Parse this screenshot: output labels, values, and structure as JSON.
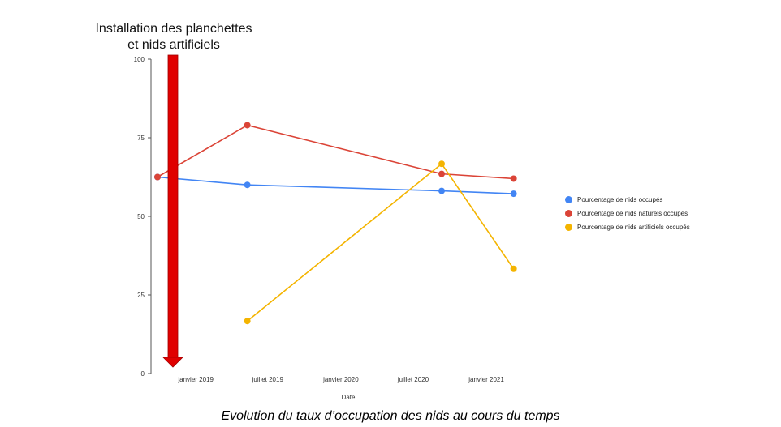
{
  "chart_data": {
    "type": "line",
    "title": "",
    "xlabel": "Date",
    "ylabel": "",
    "ylim": [
      0,
      100
    ],
    "yticks": [
      0,
      25,
      50,
      75,
      100
    ],
    "xlim": [
      "2018-12-01",
      "2021-09-01"
    ],
    "xticks": [
      {
        "date": "2019-01-01",
        "label": "janvier 2019"
      },
      {
        "date": "2019-07-01",
        "label": "juillet 2019"
      },
      {
        "date": "2020-01-01",
        "label": "janvier 2020"
      },
      {
        "date": "2020-07-01",
        "label": "juillet 2020"
      },
      {
        "date": "2021-01-01",
        "label": "janvier 2021"
      }
    ],
    "grid": false,
    "legend_position": "right",
    "series": [
      {
        "name": "Pourcentage de nids occupés",
        "color": "#4285F4",
        "points": [
          {
            "x": "2018-12-01",
            "y": 62.5
          },
          {
            "x": "2019-07-15",
            "y": 60
          },
          {
            "x": "2020-11-15",
            "y": 58.1
          },
          {
            "x": "2021-05-15",
            "y": 57.2
          }
        ]
      },
      {
        "name": "Pourcentage de nids naturels occupés",
        "color": "#DB4437",
        "points": [
          {
            "x": "2018-12-01",
            "y": 62.5
          },
          {
            "x": "2019-07-15",
            "y": 79
          },
          {
            "x": "2020-11-15",
            "y": 63.5
          },
          {
            "x": "2021-05-15",
            "y": 62
          }
        ]
      },
      {
        "name": "Pourcentage de nids artificiels occupés",
        "color": "#F4B400",
        "points": [
          {
            "x": "2019-07-15",
            "y": 16.7
          },
          {
            "x": "2020-11-15",
            "y": 66.7
          },
          {
            "x": "2021-05-15",
            "y": 33.3
          }
        ]
      }
    ],
    "annotation": {
      "text_line1": "Installation des planchettes",
      "text_line2": "et nids artificiels",
      "x": "2019-01-01",
      "color": "#E00000"
    }
  },
  "caption": "Evolution du taux d’occupation des nids au cours du temps"
}
